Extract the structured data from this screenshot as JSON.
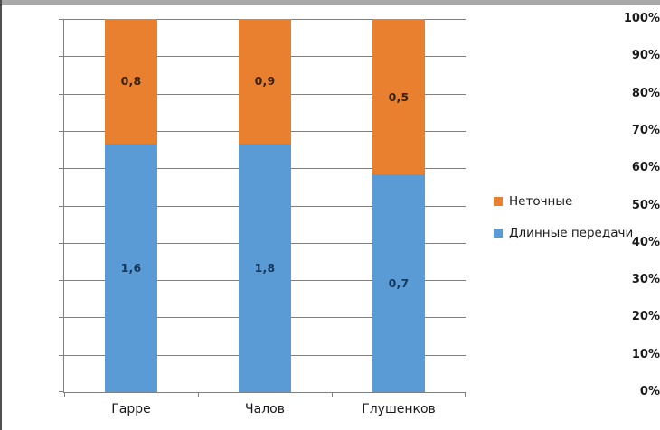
{
  "window": {
    "top_edge_color": "#a9a9a9",
    "left_edge_color": "#4f4f4f",
    "background": "#ffffff"
  },
  "chart_data": {
    "type": "bar",
    "stacked": true,
    "percent_stacked": true,
    "title": "",
    "xlabel": "",
    "ylabel": "",
    "categories": [
      "Гарре",
      "Чалов",
      "Глушенков"
    ],
    "series": [
      {
        "name": "Неточные",
        "values": [
          0.8,
          0.9,
          0.5
        ],
        "labels": [
          "0,8",
          "0,9",
          "0,5"
        ],
        "color": "#e8802f",
        "label_color": "#3a2208"
      },
      {
        "name": "Длинные передачи",
        "values": [
          1.6,
          1.8,
          0.7
        ],
        "labels": [
          "1,6",
          "1,8",
          "0,7"
        ],
        "color": "#5b9bd5",
        "label_color": "#15395f"
      }
    ],
    "y_ticks": [
      "0%",
      "10%",
      "20%",
      "30%",
      "40%",
      "50%",
      "60%",
      "70%",
      "80%",
      "90%",
      "100%"
    ],
    "ylim": [
      0,
      100
    ],
    "grid": true,
    "gridline_color": "#808080",
    "axis_color": "#808080",
    "tick_label_color": "#1a1a1a",
    "legend_position": "right"
  }
}
